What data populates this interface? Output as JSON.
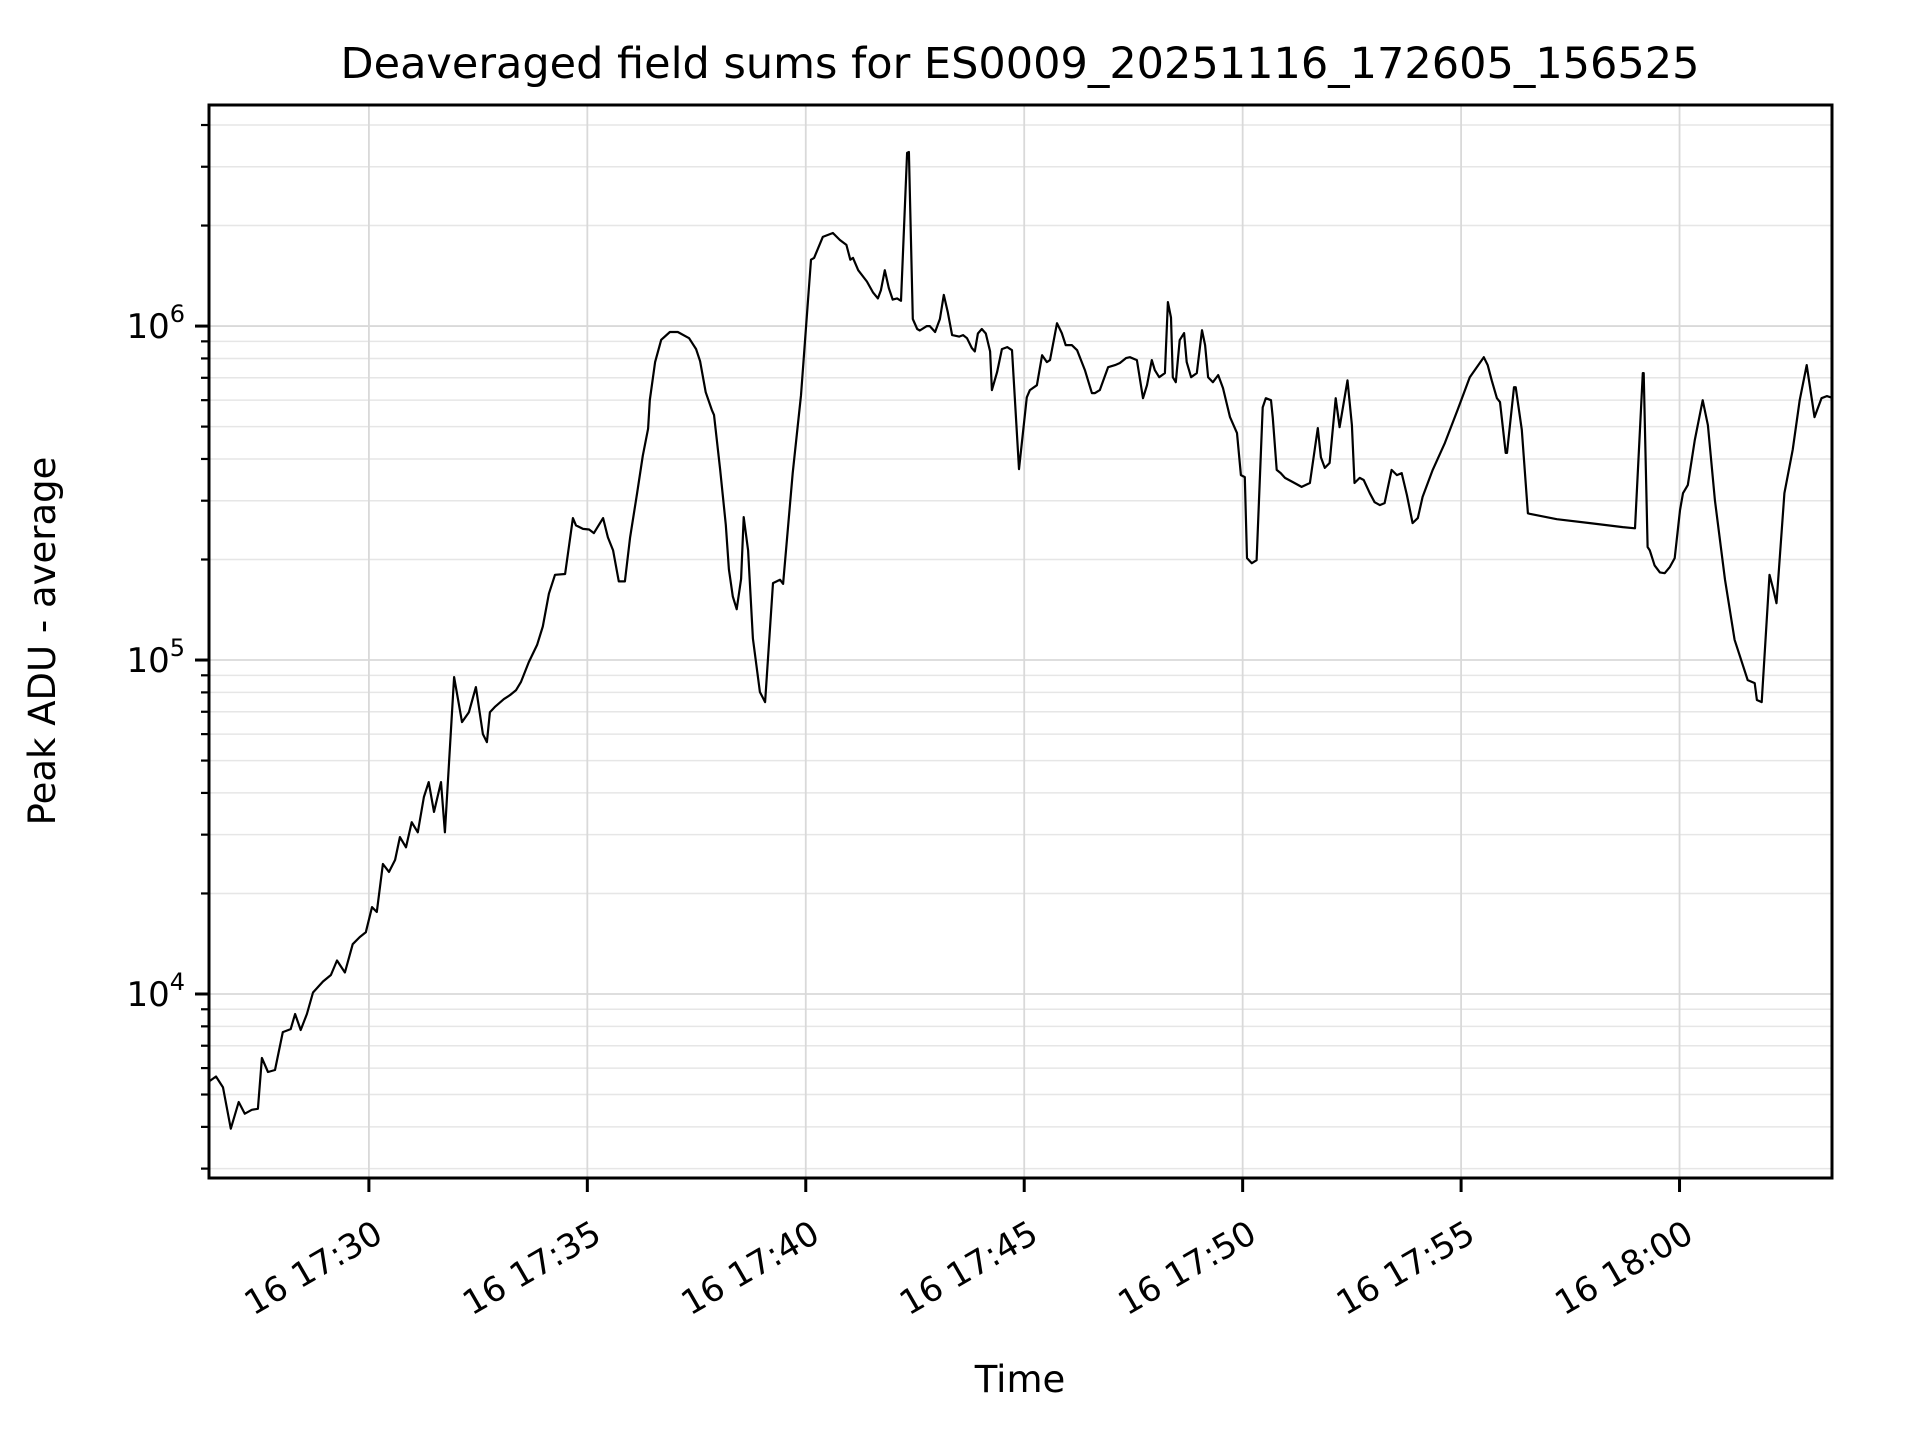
{
  "style": {
    "background": "#ffffff",
    "line_color": "#000000",
    "spine_color": "#000000",
    "grid_major_color": "#d9d9d9",
    "grid_minor_color": "#e6e6e6",
    "text_color": "#000000"
  },
  "chart_data": {
    "type": "line",
    "title": "Deaveraged field sums for ES0009_20251116_172605_156525",
    "xlabel": "Time",
    "ylabel": "Peak ADU - average",
    "legend": "none",
    "grid": "both-major-and-minor-y, major-x",
    "x_axis": {
      "unit": "minutes after 16 Nov 17:00",
      "range": [
        26.34,
        63.49
      ],
      "ticks": [
        {
          "t": 30,
          "label": "16 17:30"
        },
        {
          "t": 35,
          "label": "16 17:35"
        },
        {
          "t": 40,
          "label": "16 17:40"
        },
        {
          "t": 45,
          "label": "16 17:45"
        },
        {
          "t": 50,
          "label": "16 17:50"
        },
        {
          "t": 55,
          "label": "16 17:55"
        },
        {
          "t": 60,
          "label": "16 18:00"
        }
      ],
      "tick_label_rotation_deg": 30
    },
    "y_axis": {
      "scale": "log10",
      "range_log10": [
        3.449,
        6.662
      ],
      "ticks": [
        {
          "value": 10000,
          "base": "10",
          "exp": "4"
        },
        {
          "value": 100000,
          "base": "10",
          "exp": "5"
        },
        {
          "value": 1000000,
          "base": "10",
          "exp": "6"
        }
      ],
      "minor_ticks_per_decade": [
        2,
        3,
        4,
        5,
        6,
        7,
        8,
        9
      ]
    },
    "series": [
      {
        "name": "peak-adu-minus-average",
        "color": "#000000",
        "points": [
          [
            26.34,
            5470
          ],
          [
            26.5,
            5660
          ],
          [
            26.66,
            5250
          ],
          [
            26.84,
            3950
          ],
          [
            27.02,
            4750
          ],
          [
            27.16,
            4380
          ],
          [
            27.32,
            4500
          ],
          [
            27.46,
            4530
          ],
          [
            27.55,
            6430
          ],
          [
            27.69,
            5840
          ],
          [
            27.85,
            5920
          ],
          [
            28.03,
            7690
          ],
          [
            28.21,
            7850
          ],
          [
            28.31,
            8710
          ],
          [
            28.44,
            7800
          ],
          [
            28.58,
            8710
          ],
          [
            28.72,
            10100
          ],
          [
            28.95,
            10900
          ],
          [
            29.13,
            11400
          ],
          [
            29.27,
            12600
          ],
          [
            29.45,
            11600
          ],
          [
            29.63,
            14100
          ],
          [
            29.79,
            14800
          ],
          [
            29.93,
            15300
          ],
          [
            30.07,
            18200
          ],
          [
            30.18,
            17600
          ],
          [
            30.32,
            24500
          ],
          [
            30.46,
            23200
          ],
          [
            30.6,
            25200
          ],
          [
            30.71,
            29500
          ],
          [
            30.85,
            27500
          ],
          [
            30.98,
            32700
          ],
          [
            31.12,
            30500
          ],
          [
            31.26,
            38900
          ],
          [
            31.37,
            43100
          ],
          [
            31.49,
            35100
          ],
          [
            31.65,
            43100
          ],
          [
            31.74,
            30500
          ],
          [
            31.95,
            88900
          ],
          [
            32.13,
            65200
          ],
          [
            32.29,
            69800
          ],
          [
            32.45,
            83000
          ],
          [
            32.61,
            60000
          ],
          [
            32.7,
            56800
          ],
          [
            32.77,
            69800
          ],
          [
            32.88,
            72300
          ],
          [
            33.09,
            76400
          ],
          [
            33.23,
            78500
          ],
          [
            33.37,
            81300
          ],
          [
            33.48,
            85900
          ],
          [
            33.66,
            98600
          ],
          [
            33.85,
            111000
          ],
          [
            33.98,
            126000
          ],
          [
            34.12,
            158000
          ],
          [
            34.26,
            180000
          ],
          [
            34.49,
            181000
          ],
          [
            34.67,
            266000
          ],
          [
            34.74,
            253000
          ],
          [
            34.9,
            247000
          ],
          [
            35.04,
            246000
          ],
          [
            35.15,
            240000
          ],
          [
            35.36,
            266000
          ],
          [
            35.47,
            233000
          ],
          [
            35.59,
            213000
          ],
          [
            35.72,
            172000
          ],
          [
            35.86,
            172000
          ],
          [
            35.98,
            233000
          ],
          [
            36.14,
            316000
          ],
          [
            36.27,
            409000
          ],
          [
            36.39,
            493000
          ],
          [
            36.43,
            600000
          ],
          [
            36.55,
            780000
          ],
          [
            36.69,
            910000
          ],
          [
            36.89,
            960000
          ],
          [
            37.07,
            960000
          ],
          [
            37.33,
            920000
          ],
          [
            37.49,
            853000
          ],
          [
            37.58,
            785000
          ],
          [
            37.71,
            634000
          ],
          [
            37.85,
            561000
          ],
          [
            37.9,
            542000
          ],
          [
            38.04,
            373000
          ],
          [
            38.17,
            254000
          ],
          [
            38.24,
            187000
          ],
          [
            38.33,
            155000
          ],
          [
            38.42,
            142000
          ],
          [
            38.52,
            175000
          ],
          [
            38.58,
            268000
          ],
          [
            38.68,
            213000
          ],
          [
            38.79,
            116000
          ],
          [
            38.95,
            80200
          ],
          [
            39.07,
            74800
          ],
          [
            39.25,
            170000
          ],
          [
            39.41,
            174000
          ],
          [
            39.48,
            169000
          ],
          [
            39.7,
            363000
          ],
          [
            39.89,
            621000
          ],
          [
            40.12,
            1580000
          ],
          [
            40.19,
            1600000
          ],
          [
            40.39,
            1850000
          ],
          [
            40.62,
            1900000
          ],
          [
            40.78,
            1810000
          ],
          [
            40.93,
            1750000
          ],
          [
            41.02,
            1580000
          ],
          [
            41.08,
            1600000
          ],
          [
            41.2,
            1470000
          ],
          [
            41.4,
            1360000
          ],
          [
            41.54,
            1260000
          ],
          [
            41.65,
            1210000
          ],
          [
            41.72,
            1280000
          ],
          [
            41.81,
            1470000
          ],
          [
            41.9,
            1300000
          ],
          [
            41.99,
            1200000
          ],
          [
            42.09,
            1210000
          ],
          [
            42.18,
            1190000
          ],
          [
            42.32,
            3300000
          ],
          [
            42.36,
            3320000
          ],
          [
            42.45,
            1050000
          ],
          [
            42.55,
            980000
          ],
          [
            42.61,
            970000
          ],
          [
            42.77,
            1000000
          ],
          [
            42.84,
            1000000
          ],
          [
            42.96,
            960000
          ],
          [
            43.07,
            1050000
          ],
          [
            43.16,
            1240000
          ],
          [
            43.25,
            1100000
          ],
          [
            43.35,
            940000
          ],
          [
            43.51,
            930000
          ],
          [
            43.6,
            940000
          ],
          [
            43.69,
            920000
          ],
          [
            43.8,
            860000
          ],
          [
            43.87,
            840000
          ],
          [
            43.94,
            950000
          ],
          [
            44.03,
            980000
          ],
          [
            44.12,
            950000
          ],
          [
            44.22,
            840000
          ],
          [
            44.26,
            643000
          ],
          [
            44.38,
            728000
          ],
          [
            44.49,
            853000
          ],
          [
            44.61,
            865000
          ],
          [
            44.72,
            847000
          ],
          [
            44.88,
            373000
          ],
          [
            45.06,
            612000
          ],
          [
            45.13,
            643000
          ],
          [
            45.29,
            665000
          ],
          [
            45.41,
            818000
          ],
          [
            45.52,
            780000
          ],
          [
            45.59,
            791000
          ],
          [
            45.75,
            1020000
          ],
          [
            45.86,
            953000
          ],
          [
            45.95,
            877000
          ],
          [
            46.09,
            877000
          ],
          [
            46.21,
            847000
          ],
          [
            46.39,
            738000
          ],
          [
            46.55,
            630000
          ],
          [
            46.62,
            630000
          ],
          [
            46.73,
            643000
          ],
          [
            46.92,
            753000
          ],
          [
            47.08,
            764000
          ],
          [
            47.19,
            775000
          ],
          [
            47.33,
            802000
          ],
          [
            47.42,
            807000
          ],
          [
            47.58,
            791000
          ],
          [
            47.72,
            608000
          ],
          [
            47.81,
            665000
          ],
          [
            47.92,
            791000
          ],
          [
            47.99,
            738000
          ],
          [
            48.09,
            703000
          ],
          [
            48.22,
            723000
          ],
          [
            48.29,
            1180000
          ],
          [
            48.36,
            1060000
          ],
          [
            48.4,
            703000
          ],
          [
            48.47,
            679000
          ],
          [
            48.56,
            908000
          ],
          [
            48.66,
            953000
          ],
          [
            48.72,
            780000
          ],
          [
            48.82,
            703000
          ],
          [
            48.95,
            723000
          ],
          [
            49.07,
            972000
          ],
          [
            49.14,
            877000
          ],
          [
            49.21,
            703000
          ],
          [
            49.32,
            679000
          ],
          [
            49.44,
            713000
          ],
          [
            49.55,
            652000
          ],
          [
            49.71,
            534000
          ],
          [
            49.87,
            478000
          ],
          [
            49.96,
            358000
          ],
          [
            50.05,
            353000
          ],
          [
            50.1,
            202000
          ],
          [
            50.21,
            195000
          ],
          [
            50.32,
            199000
          ],
          [
            50.46,
            571000
          ],
          [
            50.53,
            608000
          ],
          [
            50.65,
            600000
          ],
          [
            50.69,
            531000
          ],
          [
            50.78,
            371000
          ],
          [
            50.87,
            363000
          ],
          [
            50.97,
            351000
          ],
          [
            51.15,
            341000
          ],
          [
            51.35,
            330000
          ],
          [
            51.54,
            339000
          ],
          [
            51.72,
            495000
          ],
          [
            51.79,
            405000
          ],
          [
            51.88,
            376000
          ],
          [
            51.99,
            389000
          ],
          [
            52.13,
            608000
          ],
          [
            52.22,
            498000
          ],
          [
            52.4,
            688000
          ],
          [
            52.5,
            505000
          ],
          [
            52.56,
            339000
          ],
          [
            52.68,
            351000
          ],
          [
            52.77,
            346000
          ],
          [
            52.91,
            316000
          ],
          [
            53.02,
            297000
          ],
          [
            53.14,
            291000
          ],
          [
            53.25,
            295000
          ],
          [
            53.41,
            371000
          ],
          [
            53.53,
            358000
          ],
          [
            53.64,
            363000
          ],
          [
            53.76,
            312000
          ],
          [
            53.89,
            257000
          ],
          [
            54.01,
            266000
          ],
          [
            54.12,
            308000
          ],
          [
            54.35,
            371000
          ],
          [
            54.63,
            447000
          ],
          [
            54.92,
            561000
          ],
          [
            55.2,
            703000
          ],
          [
            55.52,
            807000
          ],
          [
            55.61,
            764000
          ],
          [
            55.7,
            688000
          ],
          [
            55.82,
            608000
          ],
          [
            55.89,
            592000
          ],
          [
            56.02,
            417000
          ],
          [
            56.05,
            417000
          ],
          [
            56.21,
            656000
          ],
          [
            56.25,
            656000
          ],
          [
            56.39,
            489000
          ],
          [
            56.53,
            275000
          ],
          [
            56.57,
            274000
          ],
          [
            57.19,
            264000
          ],
          [
            57.95,
            257000
          ],
          [
            58.7,
            250000
          ],
          [
            58.98,
            248000
          ],
          [
            59.16,
            723000
          ],
          [
            59.18,
            723000
          ],
          [
            59.27,
            218000
          ],
          [
            59.32,
            213000
          ],
          [
            59.43,
            192000
          ],
          [
            59.55,
            183000
          ],
          [
            59.66,
            182000
          ],
          [
            59.78,
            190000
          ],
          [
            59.89,
            202000
          ],
          [
            60.01,
            281000
          ],
          [
            60.08,
            316000
          ],
          [
            60.19,
            334000
          ],
          [
            60.35,
            456000
          ],
          [
            60.53,
            600000
          ],
          [
            60.65,
            505000
          ],
          [
            60.81,
            301000
          ],
          [
            61.04,
            174000
          ],
          [
            61.26,
            115000
          ],
          [
            61.56,
            87100
          ],
          [
            61.72,
            85300
          ],
          [
            61.77,
            75900
          ],
          [
            61.88,
            74800
          ],
          [
            62.06,
            180000
          ],
          [
            62.15,
            162000
          ],
          [
            62.22,
            148000
          ],
          [
            62.4,
            316000
          ],
          [
            62.59,
            426000
          ],
          [
            62.75,
            600000
          ],
          [
            62.91,
            764000
          ],
          [
            63.09,
            534000
          ],
          [
            63.25,
            608000
          ],
          [
            63.37,
            617000
          ],
          [
            63.46,
            612000
          ]
        ]
      }
    ]
  }
}
